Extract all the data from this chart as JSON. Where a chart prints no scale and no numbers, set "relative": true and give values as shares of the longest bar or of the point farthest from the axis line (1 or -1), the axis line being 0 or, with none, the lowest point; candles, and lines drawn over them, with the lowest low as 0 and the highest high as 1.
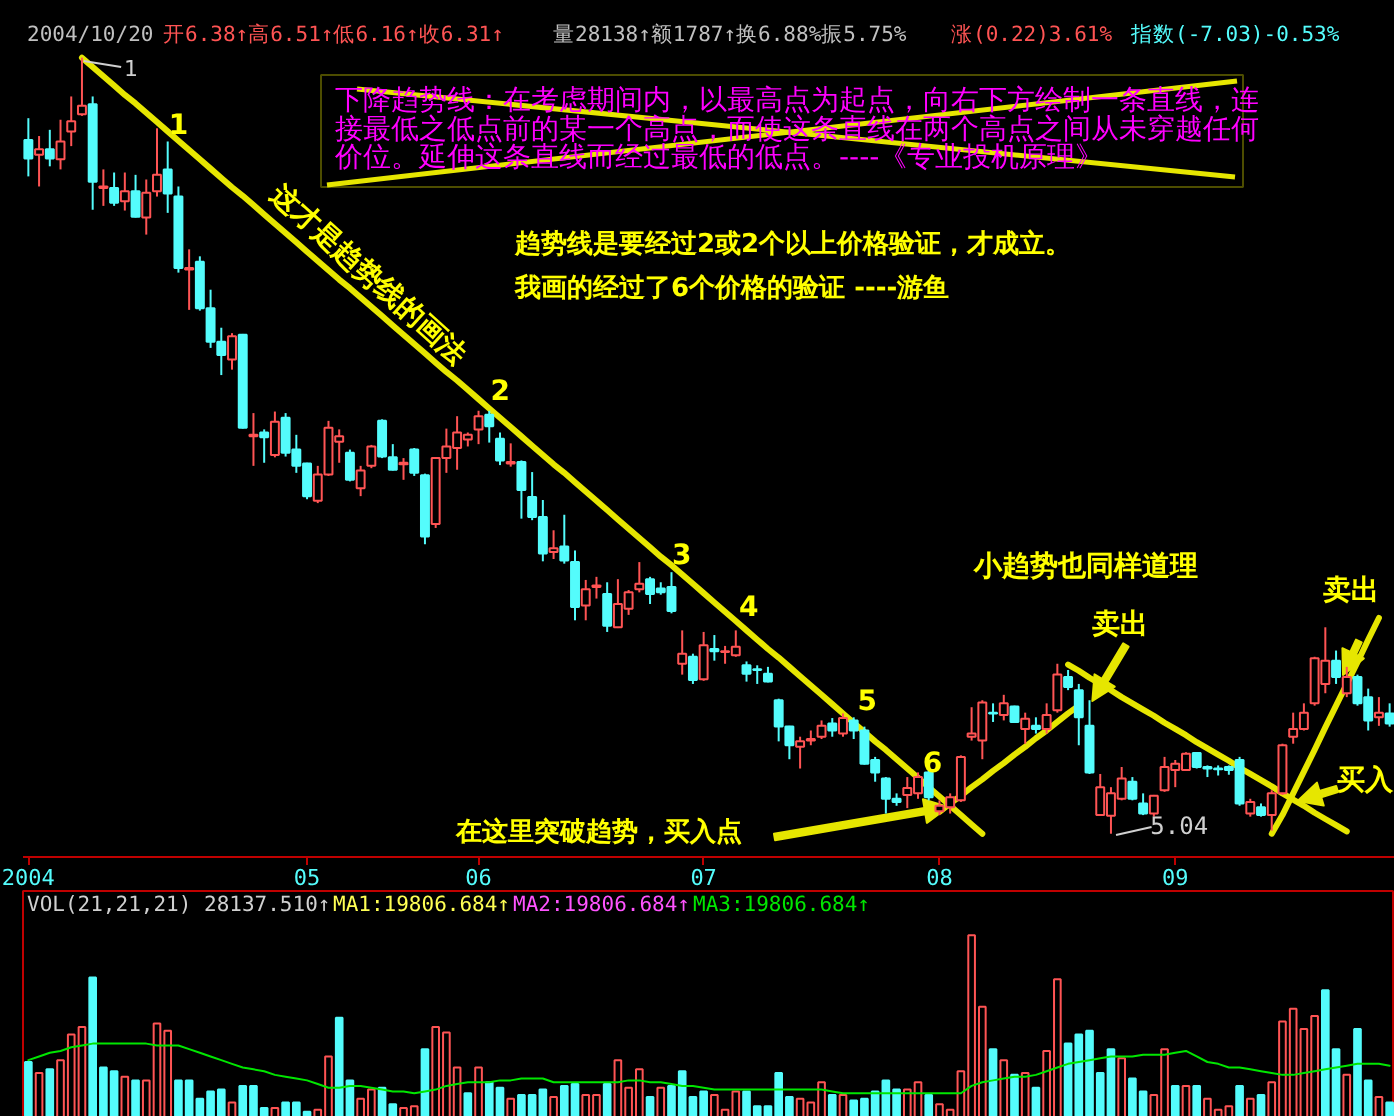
{
  "chart_data": [
    {
      "type": "candlestick",
      "relative": true,
      "categories": [
        "2004",
        null,
        null,
        null,
        null,
        null,
        null,
        null,
        null,
        null,
        null,
        null,
        null,
        null,
        null,
        null,
        null,
        null,
        null,
        null,
        null,
        null,
        null,
        null,
        null,
        null,
        "05",
        null,
        null,
        null,
        null,
        null,
        null,
        null,
        null,
        null,
        null,
        null,
        null,
        null,
        null,
        null,
        "06",
        null,
        null,
        null,
        null,
        null,
        null,
        null,
        null,
        null,
        null,
        null,
        null,
        null,
        null,
        null,
        null,
        null,
        null,
        null,
        null,
        "07",
        null,
        null,
        null,
        null,
        null,
        null,
        null,
        null,
        null,
        null,
        null,
        null,
        null,
        null,
        null,
        null,
        null,
        null,
        null,
        null,
        null,
        "08",
        null,
        null,
        null,
        null,
        null,
        null,
        null,
        null,
        null,
        null,
        null,
        null,
        null,
        null,
        null,
        null,
        null,
        null,
        null,
        null,
        null,
        "09",
        null,
        null,
        null,
        null,
        null,
        null,
        null,
        null,
        null,
        null,
        null,
        null,
        null,
        null,
        null,
        null,
        null,
        null,
        null,
        null
      ],
      "ohlc": [
        [
          0.894,
          0.922,
          0.847,
          0.87
        ],
        [
          0.875,
          0.899,
          0.834,
          0.882
        ],
        [
          0.882,
          0.907,
          0.86,
          0.87
        ],
        [
          0.869,
          0.92,
          0.856,
          0.892
        ],
        [
          0.905,
          0.95,
          0.886,
          0.918
        ],
        [
          0.927,
          1.0,
          0.925,
          0.938
        ],
        [
          0.94,
          0.95,
          0.804,
          0.84
        ],
        [
          0.832,
          0.856,
          0.809,
          0.834
        ],
        [
          0.832,
          0.852,
          0.809,
          0.813
        ],
        [
          0.815,
          0.852,
          0.803,
          0.828
        ],
        [
          0.828,
          0.849,
          0.794,
          0.795
        ],
        [
          0.794,
          0.843,
          0.772,
          0.826
        ],
        [
          0.828,
          0.909,
          0.821,
          0.849
        ],
        [
          0.856,
          0.892,
          0.8,
          0.825
        ],
        [
          0.821,
          0.834,
          0.723,
          0.729
        ],
        [
          0.727,
          0.753,
          0.675,
          0.729
        ],
        [
          0.737,
          0.744,
          0.674,
          0.677
        ],
        [
          0.677,
          0.701,
          0.626,
          0.634
        ],
        [
          0.634,
          0.652,
          0.591,
          0.617
        ],
        [
          0.611,
          0.645,
          0.598,
          0.641
        ],
        [
          0.643,
          0.644,
          0.522,
          0.523
        ],
        [
          0.512,
          0.542,
          0.474,
          0.514
        ],
        [
          0.517,
          0.521,
          0.478,
          0.511
        ],
        [
          0.488,
          0.544,
          0.485,
          0.531
        ],
        [
          0.536,
          0.542,
          0.486,
          0.491
        ],
        [
          0.495,
          0.514,
          0.465,
          0.474
        ],
        [
          0.477,
          0.478,
          0.431,
          0.435
        ],
        [
          0.429,
          0.474,
          0.426,
          0.463
        ],
        [
          0.463,
          0.532,
          0.461,
          0.523
        ],
        [
          0.505,
          0.521,
          0.478,
          0.512
        ],
        [
          0.491,
          0.495,
          0.454,
          0.456
        ],
        [
          0.445,
          0.474,
          0.435,
          0.468
        ],
        [
          0.474,
          0.501,
          0.471,
          0.499
        ],
        [
          0.532,
          0.534,
          0.484,
          0.486
        ],
        [
          0.485,
          0.502,
          0.468,
          0.469
        ],
        [
          0.476,
          0.484,
          0.456,
          0.478
        ],
        [
          0.495,
          0.497,
          0.461,
          0.465
        ],
        [
          0.462,
          0.464,
          0.373,
          0.383
        ],
        [
          0.399,
          0.485,
          0.394,
          0.484
        ],
        [
          0.484,
          0.522,
          0.465,
          0.499
        ],
        [
          0.497,
          0.538,
          0.469,
          0.517
        ],
        [
          0.508,
          0.517,
          0.499,
          0.514
        ],
        [
          0.521,
          0.545,
          0.502,
          0.538
        ],
        [
          0.54,
          0.545,
          0.504,
          0.525
        ],
        [
          0.509,
          0.517,
          0.475,
          0.481
        ],
        [
          0.477,
          0.503,
          0.473,
          0.479
        ],
        [
          0.479,
          0.481,
          0.406,
          0.443
        ],
        [
          0.434,
          0.466,
          0.404,
          0.408
        ],
        [
          0.408,
          0.43,
          0.351,
          0.361
        ],
        [
          0.363,
          0.391,
          0.354,
          0.368
        ],
        [
          0.37,
          0.411,
          0.348,
          0.352
        ],
        [
          0.35,
          0.365,
          0.275,
          0.292
        ],
        [
          0.294,
          0.327,
          0.275,
          0.315
        ],
        [
          0.318,
          0.331,
          0.303,
          0.32
        ],
        [
          0.309,
          0.324,
          0.26,
          0.268
        ],
        [
          0.266,
          0.328,
          0.265,
          0.296
        ],
        [
          0.29,
          0.314,
          0.282,
          0.311
        ],
        [
          0.315,
          0.35,
          0.311,
          0.322
        ],
        [
          0.328,
          0.331,
          0.296,
          0.309
        ],
        [
          0.316,
          0.324,
          0.308,
          0.311
        ],
        [
          0.318,
          0.337,
          0.284,
          0.287
        ],
        [
          0.219,
          0.262,
          0.205,
          0.232
        ],
        [
          0.228,
          0.232,
          0.193,
          0.198
        ],
        [
          0.199,
          0.26,
          0.197,
          0.243
        ],
        [
          0.238,
          0.256,
          0.223,
          0.235
        ],
        [
          0.234,
          0.242,
          0.219,
          0.235
        ],
        [
          0.23,
          0.262,
          0.228,
          0.241
        ],
        [
          0.217,
          0.222,
          0.196,
          0.206
        ],
        [
          0.212,
          0.217,
          0.193,
          0.211
        ],
        [
          0.206,
          0.215,
          0.195,
          0.196
        ],
        [
          0.172,
          0.174,
          0.119,
          0.138
        ],
        [
          0.138,
          0.139,
          0.096,
          0.114
        ],
        [
          0.112,
          0.125,
          0.084,
          0.119
        ],
        [
          0.12,
          0.133,
          0.114,
          0.122
        ],
        [
          0.125,
          0.146,
          0.122,
          0.139
        ],
        [
          0.142,
          0.149,
          0.125,
          0.133
        ],
        [
          0.129,
          0.155,
          0.125,
          0.149
        ],
        [
          0.146,
          0.15,
          0.122,
          0.133
        ],
        [
          0.133,
          0.138,
          0.089,
          0.09
        ],
        [
          0.095,
          0.099,
          0.067,
          0.079
        ],
        [
          0.071,
          0.073,
          0.026,
          0.045
        ],
        [
          0.045,
          0.052,
          0.036,
          0.041
        ],
        [
          0.05,
          0.073,
          0.033,
          0.059
        ],
        [
          0.052,
          0.079,
          0.045,
          0.073
        ],
        [
          0.079,
          0.082,
          0.043,
          0.047
        ],
        [
          0.029,
          0.043,
          0.024,
          0.036
        ],
        [
          0.034,
          0.052,
          0.026,
          0.047
        ],
        [
          0.043,
          0.101,
          0.041,
          0.099
        ],
        [
          0.125,
          0.163,
          0.12,
          0.129
        ],
        [
          0.12,
          0.172,
          0.096,
          0.169
        ],
        [
          0.156,
          0.168,
          0.144,
          0.155
        ],
        [
          0.153,
          0.179,
          0.146,
          0.168
        ],
        [
          0.164,
          0.165,
          0.143,
          0.144
        ],
        [
          0.135,
          0.156,
          0.116,
          0.148
        ],
        [
          0.139,
          0.15,
          0.129,
          0.135
        ],
        [
          0.135,
          0.168,
          0.129,
          0.153
        ],
        [
          0.159,
          0.219,
          0.156,
          0.205
        ],
        [
          0.202,
          0.211,
          0.185,
          0.189
        ],
        [
          0.185,
          0.193,
          0.114,
          0.15
        ],
        [
          0.139,
          0.172,
          0.077,
          0.079
        ],
        [
          0.024,
          0.077,
          0.023,
          0.06
        ],
        [
          0.023,
          0.06,
          0.0,
          0.052
        ],
        [
          0.045,
          0.086,
          0.043,
          0.071
        ],
        [
          0.067,
          0.073,
          0.043,
          0.045
        ],
        [
          0.039,
          0.052,
          0.024,
          0.026
        ],
        [
          0.026,
          0.05,
          0.022,
          0.049
        ],
        [
          0.056,
          0.099,
          0.054,
          0.086
        ],
        [
          0.082,
          0.095,
          0.06,
          0.09
        ],
        [
          0.082,
          0.105,
          0.081,
          0.103
        ],
        [
          0.104,
          0.105,
          0.084,
          0.086
        ],
        [
          0.086,
          0.088,
          0.073,
          0.084
        ],
        [
          0.084,
          0.088,
          0.075,
          0.083
        ],
        [
          0.086,
          0.088,
          0.076,
          0.082
        ],
        [
          0.095,
          0.099,
          0.036,
          0.039
        ],
        [
          0.026,
          0.045,
          0.022,
          0.041
        ],
        [
          0.034,
          0.039,
          0.022,
          0.024
        ],
        [
          0.024,
          0.056,
          0.004,
          0.052
        ],
        [
          0.052,
          0.116,
          0.05,
          0.114
        ],
        [
          0.125,
          0.156,
          0.116,
          0.135
        ],
        [
          0.135,
          0.168,
          0.133,
          0.156
        ],
        [
          0.168,
          0.228,
          0.165,
          0.226
        ],
        [
          0.193,
          0.266,
          0.181,
          0.223
        ],
        [
          0.223,
          0.236,
          0.193,
          0.202
        ],
        [
          0.181,
          0.215,
          0.176,
          0.202
        ],
        [
          0.202,
          0.205,
          0.165,
          0.168
        ],
        [
          0.176,
          0.187,
          0.133,
          0.146
        ],
        [
          0.15,
          0.176,
          0.139,
          0.156
        ],
        [
          0.155,
          0.168,
          0.138,
          0.142
        ]
      ],
      "colors": [
        "#54fcfc",
        "#ff5454",
        "#54fcfc",
        "#ff5454",
        "#ff5454",
        "#ff5454",
        "#54fcfc",
        "#ff5454",
        "#54fcfc",
        "#ff5454",
        "#54fcfc",
        "#ff5454",
        "#ff5454",
        "#54fcfc",
        "#54fcfc",
        "#ff5454",
        "#54fcfc",
        "#54fcfc",
        "#54fcfc",
        "#ff5454",
        "#54fcfc",
        "#ff5454",
        "#54fcfc",
        "#ff5454",
        "#54fcfc",
        "#54fcfc",
        "#54fcfc",
        "#ff5454",
        "#ff5454",
        "#ff5454",
        "#54fcfc",
        "#ff5454",
        "#ff5454",
        "#54fcfc",
        "#54fcfc",
        "#ff5454",
        "#54fcfc",
        "#54fcfc",
        "#ff5454",
        "#ff5454",
        "#ff5454",
        "#ff5454",
        "#ff5454",
        "#54fcfc",
        "#54fcfc",
        "#ff5454",
        "#54fcfc",
        "#54fcfc",
        "#54fcfc",
        "#ff5454",
        "#54fcfc",
        "#54fcfc",
        "#ff5454",
        "#ff5454",
        "#54fcfc",
        "#ff5454",
        "#ff5454",
        "#ff5454",
        "#54fcfc",
        "#54fcfc",
        "#54fcfc",
        "#ff5454",
        "#54fcfc",
        "#ff5454",
        "#54fcfc",
        "#ff5454",
        "#ff5454",
        "#54fcfc",
        "#54fcfc",
        "#54fcfc",
        "#54fcfc",
        "#54fcfc",
        "#ff5454",
        "#ff5454",
        "#ff5454",
        "#54fcfc",
        "#ff5454",
        "#54fcfc",
        "#54fcfc",
        "#54fcfc",
        "#54fcfc",
        "#54fcfc",
        "#ff5454",
        "#ff5454",
        "#54fcfc",
        "#ff5454",
        "#ff5454",
        "#ff5454",
        "#ff5454",
        "#ff5454",
        "#54fcfc",
        "#ff5454",
        "#54fcfc",
        "#ff5454",
        "#54fcfc",
        "#ff5454",
        "#ff5454",
        "#54fcfc",
        "#54fcfc",
        "#54fcfc",
        "#ff5454",
        "#ff5454",
        "#ff5454",
        "#54fcfc",
        "#54fcfc",
        "#ff5454",
        "#ff5454",
        "#ff5454",
        "#ff5454",
        "#54fcfc",
        "#54fcfc",
        "#54fcfc",
        "#54fcfc",
        "#54fcfc",
        "#ff5454",
        "#54fcfc",
        "#ff5454",
        "#ff5454",
        "#ff5454",
        "#ff5454",
        "#ff5454",
        "#ff5454",
        "#54fcfc",
        "#ff5454",
        "#54fcfc",
        "#54fcfc",
        "#ff5454",
        "#54fcfc"
      ],
      "series": [
        {
          "type": "line",
          "color": "#e6e600",
          "values": [
            null,
            null,
            null,
            null,
            null,
            1.0,
            0.988,
            0.976,
            0.964,
            0.952,
            0.941,
            0.929,
            0.917,
            0.905,
            0.893,
            0.881,
            0.869,
            0.857,
            0.845,
            0.833,
            0.822,
            0.81,
            0.798,
            0.786,
            0.774,
            0.762,
            0.75,
            0.738,
            0.726,
            0.714,
            0.703,
            0.691,
            0.679,
            0.667,
            0.655,
            0.643,
            0.631,
            0.619,
            0.607,
            0.595,
            0.584,
            0.572,
            0.56,
            0.548,
            0.536,
            0.524,
            0.512,
            0.5,
            0.488,
            0.476,
            0.465,
            0.453,
            0.441,
            0.429,
            0.417,
            0.405,
            0.393,
            0.381,
            0.369,
            0.357,
            0.346,
            0.334,
            0.322,
            0.31,
            0.298,
            0.286,
            0.274,
            0.262,
            0.25,
            0.238,
            0.227,
            0.215,
            0.203,
            0.191,
            0.179,
            0.167,
            0.155,
            0.143,
            0.131,
            0.119,
            0.108,
            0.096,
            0.084,
            0.072,
            0.06,
            0.048,
            0.036,
            0.024,
            0.012,
            0.0,
            null,
            null,
            null,
            null,
            null,
            null,
            null,
            null,
            null,
            null,
            null,
            null,
            null,
            null,
            null,
            null,
            null,
            null,
            null,
            null,
            null,
            null,
            null,
            null,
            null,
            null,
            null,
            null,
            null,
            null,
            null,
            null,
            null,
            null,
            null,
            null,
            null,
            null
          ]
        },
        {
          "type": "line",
          "color": "#e6e600",
          "values": [
            null,
            null,
            null,
            null,
            null,
            null,
            null,
            null,
            null,
            null,
            null,
            null,
            null,
            null,
            null,
            null,
            null,
            null,
            null,
            null,
            null,
            null,
            null,
            null,
            null,
            null,
            null,
            null,
            null,
            null,
            null,
            null,
            null,
            null,
            null,
            null,
            null,
            null,
            null,
            null,
            null,
            null,
            null,
            null,
            null,
            null,
            null,
            null,
            null,
            null,
            null,
            null,
            null,
            null,
            null,
            null,
            null,
            null,
            null,
            null,
            null,
            null,
            null,
            null,
            null,
            null,
            null,
            null,
            null,
            null,
            null,
            null,
            null,
            null,
            null,
            null,
            null,
            null,
            null,
            null,
            null,
            null,
            null,
            null,
            null,
            0.028,
            0.039,
            0.049,
            0.06,
            0.07,
            0.081,
            0.091,
            0.102,
            0.112,
            0.123,
            0.133,
            0.144,
            0.155,
            0.165,
            null,
            null,
            null,
            null,
            null,
            null,
            null,
            null,
            null,
            null,
            null,
            null,
            null,
            null,
            null,
            null,
            null,
            null,
            null,
            null,
            null,
            null,
            null,
            null,
            null,
            null,
            null,
            null,
            null
          ]
        },
        {
          "type": "line",
          "color": "#e6e600",
          "values": [
            null,
            null,
            null,
            null,
            null,
            null,
            null,
            null,
            null,
            null,
            null,
            null,
            null,
            null,
            null,
            null,
            null,
            null,
            null,
            null,
            null,
            null,
            null,
            null,
            null,
            null,
            null,
            null,
            null,
            null,
            null,
            null,
            null,
            null,
            null,
            null,
            null,
            null,
            null,
            null,
            null,
            null,
            null,
            null,
            null,
            null,
            null,
            null,
            null,
            null,
            null,
            null,
            null,
            null,
            null,
            null,
            null,
            null,
            null,
            null,
            null,
            null,
            null,
            null,
            null,
            null,
            null,
            null,
            null,
            null,
            null,
            null,
            null,
            null,
            null,
            null,
            null,
            null,
            null,
            null,
            null,
            null,
            null,
            null,
            null,
            null,
            null,
            null,
            null,
            null,
            null,
            null,
            null,
            null,
            null,
            null,
            null,
            0.218,
            0.21,
            0.201,
            0.193,
            0.185,
            0.176,
            0.168,
            0.16,
            0.152,
            0.143,
            0.135,
            0.127,
            0.118,
            0.11,
            0.102,
            0.094,
            0.085,
            0.077,
            0.069,
            0.061,
            0.052,
            0.044,
            0.036,
            0.027,
            0.019,
            0.011,
            0.003,
            null,
            null,
            null,
            null
          ]
        },
        {
          "type": "line",
          "color": "#e6e600",
          "values": [
            null,
            null,
            null,
            null,
            null,
            null,
            null,
            null,
            null,
            null,
            null,
            null,
            null,
            null,
            null,
            null,
            null,
            null,
            null,
            null,
            null,
            null,
            null,
            null,
            null,
            null,
            null,
            null,
            null,
            null,
            null,
            null,
            null,
            null,
            null,
            null,
            null,
            null,
            null,
            null,
            null,
            null,
            null,
            null,
            null,
            null,
            null,
            null,
            null,
            null,
            null,
            null,
            null,
            null,
            null,
            null,
            null,
            null,
            null,
            null,
            null,
            null,
            null,
            null,
            null,
            null,
            null,
            null,
            null,
            null,
            null,
            null,
            null,
            null,
            null,
            null,
            null,
            null,
            null,
            null,
            null,
            null,
            null,
            null,
            null,
            null,
            null,
            null,
            null,
            null,
            null,
            null,
            null,
            null,
            null,
            null,
            null,
            null,
            null,
            null,
            null,
            null,
            null,
            null,
            null,
            null,
            null,
            null,
            null,
            null,
            null,
            null,
            null,
            null,
            null,
            null,
            0.0,
            0.024,
            0.052,
            0.08,
            0.108,
            0.137,
            0.165,
            0.193,
            0.221,
            0.25,
            0.278,
            null
          ]
        }
      ],
      "annotations": [
        "2004/10/20",
        "开6.38↑高6.51↑低6.16↑收6.31↑",
        "量28138↑额1787↑换6.88%振5.75%",
        "涨(0.22)3.61%",
        "指数(-7.03)-0.53%",
        "下降趋势线：在考虑期间内，以最高点为起点，向右下方绘制一条直线，连接最低之低点前的某一个高点，而使这条直线在两个高点之间从未穿越任何价位。延伸这条直线而经过最低的低点。----《专业投机原理》",
        "这才是趋势线的画法",
        "趋势线是要经过2或2个以上价格验证，才成立。",
        "我画的经过了6个价格的验证 ----游鱼",
        "小趋势也同样道理",
        "1",
        "1",
        "2",
        "3",
        "4",
        "5",
        "6",
        "在这里突破趋势，买入点",
        "卖出",
        "卖出",
        "买入",
        "5.04"
      ]
    },
    {
      "type": "bar",
      "relative": true,
      "tick_labels": false,
      "categories": [
        "2004",
        null,
        null,
        null,
        null,
        null,
        null,
        null,
        null,
        null,
        null,
        null,
        null,
        null,
        null,
        null,
        null,
        null,
        null,
        null,
        null,
        null,
        null,
        null,
        null,
        null,
        "05",
        null,
        null,
        null,
        null,
        null,
        null,
        null,
        null,
        null,
        null,
        null,
        null,
        null,
        null,
        null,
        "06",
        null,
        null,
        null,
        null,
        null,
        null,
        null,
        null,
        null,
        null,
        null,
        null,
        null,
        null,
        null,
        null,
        null,
        null,
        null,
        null,
        "07",
        null,
        null,
        null,
        null,
        null,
        null,
        null,
        null,
        null,
        null,
        null,
        null,
        null,
        null,
        null,
        null,
        null,
        null,
        null,
        null,
        null,
        "08",
        null,
        null,
        null,
        null,
        null,
        null,
        null,
        null,
        null,
        null,
        null,
        null,
        null,
        null,
        null,
        null,
        null,
        null,
        null,
        null,
        null,
        "09",
        null,
        null,
        null,
        null,
        null,
        null,
        null,
        null,
        null,
        null,
        null,
        null,
        null,
        null,
        null,
        null,
        null,
        null,
        null,
        null
      ],
      "series": [
        {
          "type": "bar",
          "values": [
            0.31,
            0.25,
            0.27,
            0.32,
            0.46,
            0.5,
            0.77,
            0.28,
            0.26,
            0.23,
            0.21,
            0.21,
            0.52,
            0.48,
            0.21,
            0.21,
            0.11,
            0.15,
            0.16,
            0.09,
            0.18,
            0.18,
            0.06,
            0.06,
            0.09,
            0.09,
            0.04,
            0.05,
            0.34,
            0.55,
            0.21,
            0.11,
            0.16,
            0.17,
            0.08,
            0.06,
            0.07,
            0.38,
            0.5,
            0.47,
            0.28,
            0.14,
            0.28,
            0.2,
            0.17,
            0.11,
            0.13,
            0.13,
            0.16,
            0.12,
            0.18,
            0.19,
            0.13,
            0.13,
            0.19,
            0.32,
            0.17,
            0.27,
            0.12,
            0.17,
            0.18,
            0.26,
            0.12,
            0.15,
            0.13,
            0.05,
            0.15,
            0.15,
            0.07,
            0.07,
            0.25,
            0.12,
            0.11,
            0.09,
            0.2,
            0.13,
            0.13,
            0.1,
            0.11,
            0.15,
            0.21,
            0.16,
            0.16,
            0.2,
            0.13,
            0.08,
            0.05,
            0.26,
            1.0,
            0.61,
            0.38,
            0.32,
            0.24,
            0.25,
            0.17,
            0.37,
            0.76,
            0.41,
            0.46,
            0.48,
            0.25,
            0.38,
            0.33,
            0.22,
            0.15,
            0.13,
            0.38,
            0.18,
            0.18,
            0.18,
            0.11,
            0.05,
            0.07,
            0.18,
            0.11,
            0.13,
            0.2,
            0.53,
            0.6,
            0.49,
            0.56,
            0.7,
            0.38,
            0.24,
            0.49,
            0.21,
            0.12,
            0.09
          ],
          "colors": [
            "#54fcfc",
            "#ff5454",
            "#54fcfc",
            "#ff5454",
            "#ff5454",
            "#ff5454",
            "#54fcfc",
            "#54fcfc",
            "#54fcfc",
            "#ff5454",
            "#54fcfc",
            "#ff5454",
            "#ff5454",
            "#ff5454",
            "#54fcfc",
            "#54fcfc",
            "#54fcfc",
            "#54fcfc",
            "#54fcfc",
            "#ff5454",
            "#54fcfc",
            "#54fcfc",
            "#54fcfc",
            "#ff5454",
            "#54fcfc",
            "#54fcfc",
            "#54fcfc",
            "#ff5454",
            "#ff5454",
            "#54fcfc",
            "#54fcfc",
            "#ff5454",
            "#ff5454",
            "#54fcfc",
            "#54fcfc",
            "#ff5454",
            "#ff5454",
            "#54fcfc",
            "#ff5454",
            "#ff5454",
            "#ff5454",
            "#54fcfc",
            "#ff5454",
            "#54fcfc",
            "#54fcfc",
            "#ff5454",
            "#54fcfc",
            "#54fcfc",
            "#54fcfc",
            "#ff5454",
            "#54fcfc",
            "#54fcfc",
            "#ff5454",
            "#ff5454",
            "#54fcfc",
            "#ff5454",
            "#ff5454",
            "#ff5454",
            "#54fcfc",
            "#ff5454",
            "#54fcfc",
            "#54fcfc",
            "#54fcfc",
            "#54fcfc",
            "#ff5454",
            "#ff5454",
            "#ff5454",
            "#54fcfc",
            "#54fcfc",
            "#54fcfc",
            "#54fcfc",
            "#54fcfc",
            "#ff5454",
            "#ff5454",
            "#ff5454",
            "#54fcfc",
            "#ff5454",
            "#54fcfc",
            "#54fcfc",
            "#54fcfc",
            "#54fcfc",
            "#54fcfc",
            "#ff5454",
            "#ff5454",
            "#54fcfc",
            "#ff5454",
            "#ff5454",
            "#ff5454",
            "#ff5454",
            "#ff5454",
            "#54fcfc",
            "#ff5454",
            "#54fcfc",
            "#ff5454",
            "#54fcfc",
            "#ff5454",
            "#ff5454",
            "#54fcfc",
            "#54fcfc",
            "#54fcfc",
            "#54fcfc",
            "#54fcfc",
            "#ff5454",
            "#54fcfc",
            "#54fcfc",
            "#ff5454",
            "#ff5454",
            "#54fcfc",
            "#ff5454",
            "#54fcfc",
            "#ff5454",
            "#ff5454",
            "#ff5454",
            "#54fcfc",
            "#ff5454",
            "#54fcfc",
            "#ff5454",
            "#ff5454",
            "#ff5454",
            "#ff5454",
            "#ff5454",
            "#54fcfc",
            "#54fcfc",
            "#ff5454",
            "#54fcfc",
            "#54fcfc",
            "#ff5454",
            "#54fcfc"
          ]
        },
        {
          "type": "line",
          "color": "#00e600",
          "values": [
            0.32,
            0.34,
            0.36,
            0.37,
            0.39,
            0.4,
            0.41,
            0.41,
            0.41,
            0.41,
            0.41,
            0.41,
            0.4,
            0.4,
            0.4,
            0.38,
            0.36,
            0.34,
            0.32,
            0.3,
            0.28,
            0.27,
            0.26,
            0.24,
            0.23,
            0.22,
            0.21,
            0.19,
            0.17,
            0.17,
            0.18,
            0.18,
            0.17,
            0.16,
            0.15,
            0.15,
            0.14,
            0.15,
            0.16,
            0.18,
            0.19,
            0.2,
            0.2,
            0.2,
            0.21,
            0.21,
            0.22,
            0.22,
            0.22,
            0.2,
            0.2,
            0.2,
            0.2,
            0.2,
            0.2,
            0.2,
            0.21,
            0.21,
            0.2,
            0.2,
            0.19,
            0.18,
            0.18,
            0.17,
            0.16,
            0.16,
            0.16,
            0.16,
            0.16,
            0.16,
            0.16,
            0.16,
            0.16,
            0.16,
            0.16,
            0.15,
            0.14,
            0.14,
            0.14,
            0.14,
            0.14,
            0.14,
            0.14,
            0.14,
            0.14,
            0.14,
            0.14,
            0.14,
            0.18,
            0.2,
            0.21,
            0.22,
            0.23,
            0.23,
            0.24,
            0.26,
            0.28,
            0.3,
            0.31,
            0.32,
            0.33,
            0.34,
            0.34,
            0.34,
            0.35,
            0.35,
            0.35,
            0.36,
            0.37,
            0.34,
            0.31,
            0.3,
            0.28,
            0.28,
            0.27,
            0.26,
            0.25,
            0.24,
            0.24,
            0.25,
            0.26,
            0.27,
            0.28,
            0.29,
            0.3,
            0.3,
            0.3,
            0.29
          ]
        }
      ],
      "annotations": [
        "VOL(21,21,21) 28137.510↑",
        "MA1:19806.684↑",
        "MA2:19806.684↑",
        "MA3:19806.684↑"
      ]
    }
  ]
}
